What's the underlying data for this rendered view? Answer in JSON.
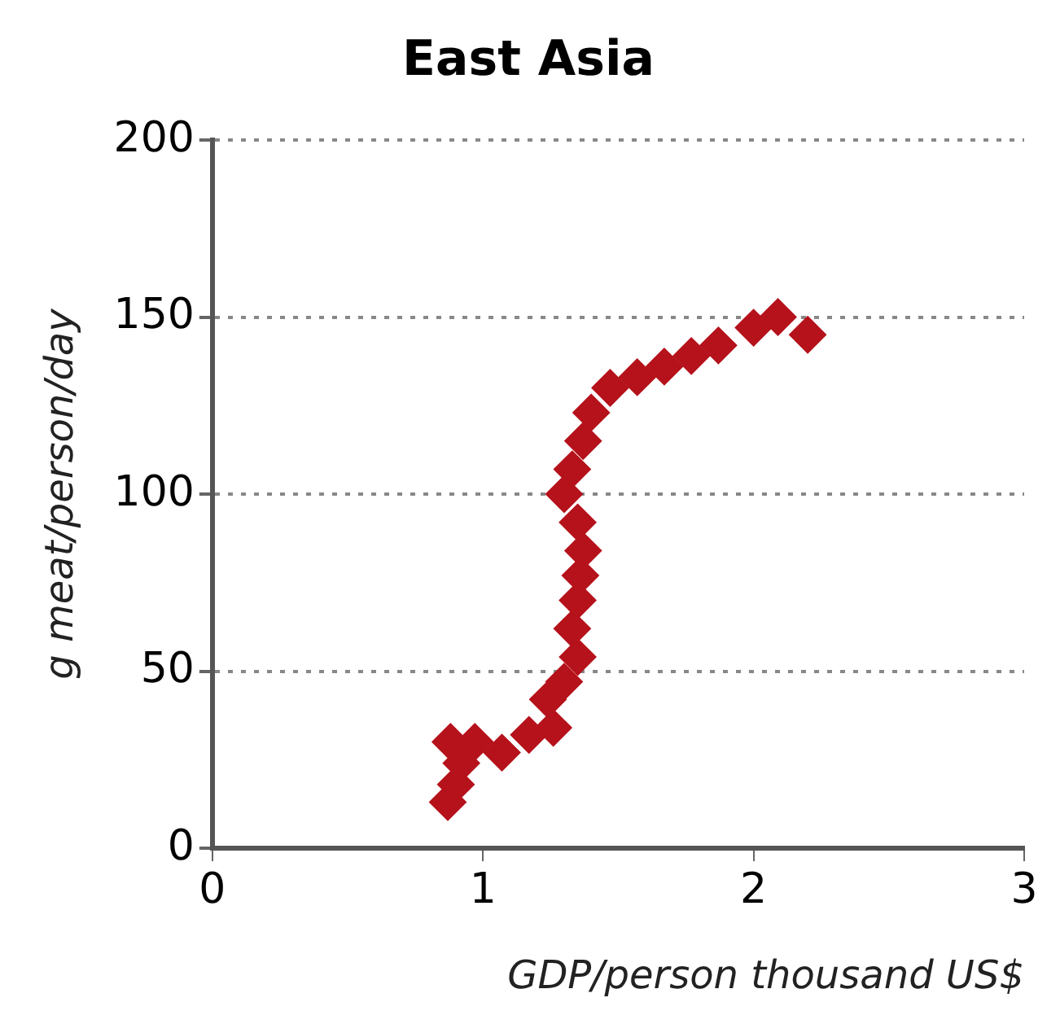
{
  "chart_data": {
    "type": "scatter",
    "title": "East Asia",
    "xlabel": "GDP/person thousand US$",
    "ylabel": "g meat/person/day",
    "x": [
      0.87,
      0.9,
      0.92,
      0.88,
      0.97,
      1.07,
      1.17,
      1.26,
      1.24,
      1.3,
      1.35,
      1.33,
      1.35,
      1.36,
      1.37,
      1.35,
      1.3,
      1.33,
      1.37,
      1.4,
      1.47,
      1.57,
      1.67,
      1.77,
      1.87,
      2.0,
      2.09,
      2.2
    ],
    "series": [
      {
        "color": "#b5121b",
        "values": [
          13,
          18,
          24,
          30,
          30,
          27,
          32,
          34,
          42,
          47,
          54,
          62,
          70,
          77,
          84,
          92,
          100,
          107,
          115,
          123,
          130,
          133,
          136,
          139,
          142,
          147,
          150,
          145
        ]
      }
    ],
    "xlim": [
      0,
      3
    ],
    "xticks": [
      0,
      1,
      2,
      3
    ],
    "ylim": [
      0,
      200
    ],
    "yticks": [
      0,
      50,
      100,
      150,
      200
    ],
    "grid": "y",
    "legend": false,
    "marker": "diamond"
  }
}
